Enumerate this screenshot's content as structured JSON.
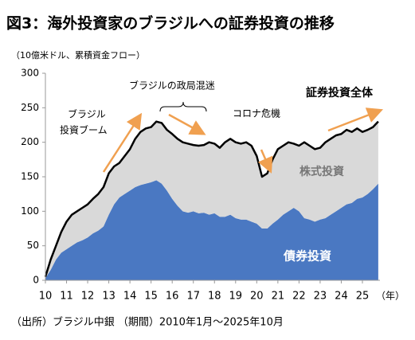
{
  "chart_data": {
    "type": "stacked_area",
    "title": "図3：海外投資家のブラジルへの証券投資の推移",
    "subtitle": "（10億米ドル、累積資金フロー）",
    "source": "（出所）ブラジル中銀 （期間）2010年1月～2025年10月",
    "xlabel": "（年）",
    "total_label": "証券投資全体",
    "total_color": "#000000",
    "annotations": [
      "ブラジル",
      "投資ブーム",
      "ブラジルの政局混迷",
      "コロナ危機"
    ],
    "xlim": [
      10,
      25.83
    ],
    "xticks": [
      10,
      11,
      12,
      13,
      14,
      15,
      16,
      17,
      18,
      19,
      20,
      21,
      22,
      23,
      24,
      25
    ],
    "ylim": [
      0,
      300
    ],
    "yticks": [
      0,
      50,
      100,
      150,
      200,
      250,
      300
    ],
    "grid": false,
    "x": [
      10,
      10.25,
      10.5,
      10.75,
      11,
      11.25,
      11.5,
      11.75,
      12,
      12.25,
      12.5,
      12.75,
      13,
      13.25,
      13.5,
      13.75,
      14,
      14.25,
      14.5,
      14.75,
      15,
      15.25,
      15.5,
      15.75,
      16,
      16.25,
      16.5,
      16.75,
      17,
      17.25,
      17.5,
      17.75,
      18,
      18.25,
      18.5,
      18.75,
      19,
      19.25,
      19.5,
      19.75,
      20,
      20.25,
      20.5,
      20.75,
      21,
      21.25,
      21.5,
      21.75,
      22,
      22.25,
      22.5,
      22.75,
      23,
      23.25,
      23.5,
      23.75,
      24,
      24.25,
      24.5,
      24.75,
      25,
      25.25,
      25.5,
      25.75
    ],
    "series": [
      {
        "name": "債券投資",
        "color": "#4a78c2",
        "values": [
          3,
          15,
          30,
          40,
          45,
          50,
          55,
          58,
          62,
          68,
          72,
          78,
          95,
          110,
          120,
          125,
          130,
          135,
          138,
          140,
          142,
          145,
          140,
          130,
          118,
          108,
          100,
          98,
          100,
          97,
          98,
          95,
          97,
          92,
          92,
          95,
          90,
          88,
          88,
          85,
          82,
          75,
          75,
          82,
          88,
          95,
          100,
          105,
          100,
          90,
          88,
          85,
          88,
          90,
          95,
          100,
          105,
          110,
          112,
          118,
          120,
          125,
          132,
          140
        ]
      },
      {
        "name": "株式投資",
        "color": "#d9d9d9",
        "values": [
          2,
          15,
          20,
          30,
          40,
          45,
          45,
          47,
          48,
          50,
          53,
          57,
          60,
          55,
          50,
          55,
          60,
          70,
          77,
          80,
          80,
          85,
          88,
          88,
          94,
          97,
          100,
          100,
          96,
          98,
          98,
          105,
          101,
          100,
          108,
          110,
          110,
          110,
          112,
          110,
          98,
          75,
          80,
          93,
          102,
          100,
          100,
          93,
          95,
          110,
          107,
          105,
          104,
          110,
          110,
          110,
          107,
          108,
          103,
          102,
          95,
          93,
          90,
          90
        ]
      }
    ]
  }
}
